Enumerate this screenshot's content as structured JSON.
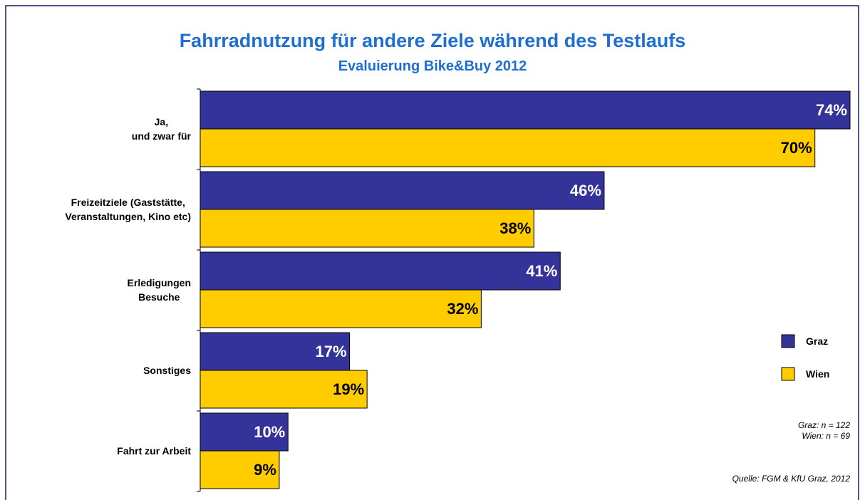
{
  "chart_data": {
    "type": "hbar",
    "title": "Fahrradnutzung für andere Ziele während des Testlaufs",
    "subtitle": "Evaluierung Bike&Buy 2012",
    "categories": [
      "Ja,\nund zwar für",
      "Freizeitziele (Gaststätte,\nVeranstaltungen, Kino etc)",
      "Erledigungen\nBesuche",
      "Sonstiges",
      "Fahrt zur Arbeit"
    ],
    "series": [
      {
        "name": "Graz",
        "color": "#333399",
        "values": [
          74,
          46,
          41,
          17,
          10
        ],
        "value_labels": [
          "74%",
          "46%",
          "41%",
          "17%",
          "10%"
        ]
      },
      {
        "name": "Wien",
        "color": "#ffcc00",
        "values": [
          70,
          38,
          32,
          19,
          9
        ],
        "value_labels": [
          "70%",
          "38%",
          "32%",
          "19%",
          "9%"
        ]
      }
    ],
    "legend": "right",
    "notes": [
      "Graz: n = 122",
      "Wien: n = 69"
    ],
    "source": "Quelle: FGM & KfU Graz, 2012"
  }
}
